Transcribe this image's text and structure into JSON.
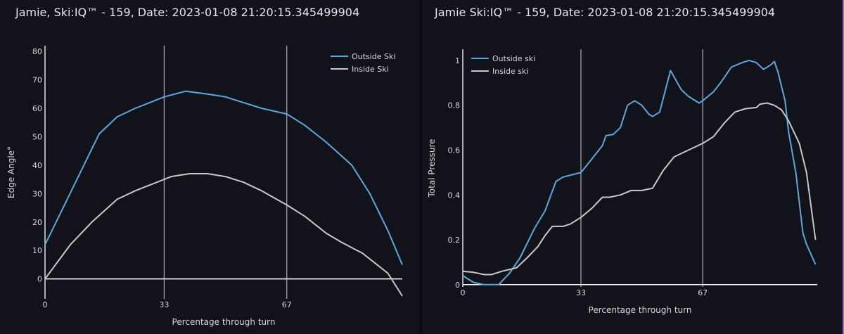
{
  "chart_data": [
    {
      "type": "line",
      "title": "Jamie, Ski:IQ™ - 159, Date: 2023-01-08 21:20:15.345499904",
      "xlabel": "Percentage through turn",
      "ylabel": "Edge Angle°",
      "xlim": [
        0,
        99
      ],
      "ylim": [
        -7,
        82
      ],
      "xticks": [
        0,
        33,
        67
      ],
      "yticks": [
        0,
        10,
        20,
        30,
        40,
        50,
        60,
        70,
        80
      ],
      "vlines": [
        33,
        67
      ],
      "grid": false,
      "legend": "top-right",
      "series": [
        {
          "name": "Outside Ski",
          "color": "#5aa8dc",
          "x": [
            0,
            5,
            10,
            15,
            20,
            25,
            30,
            33,
            39,
            45,
            50,
            55,
            60,
            67,
            72,
            78,
            85,
            90,
            95,
            99
          ],
          "y": [
            12,
            25,
            38,
            51,
            57,
            60,
            62.5,
            64,
            66,
            65,
            64,
            62,
            60,
            58,
            54,
            48,
            40,
            30,
            17,
            5
          ]
        },
        {
          "name": "Inside Ski",
          "color": "#c8c8c8",
          "x": [
            0,
            7,
            13,
            20,
            25,
            30,
            35,
            40,
            45,
            50,
            55,
            60,
            67,
            72,
            78,
            82,
            88,
            95,
            99
          ],
          "y": [
            0,
            12,
            20,
            28,
            31,
            33.5,
            36,
            37,
            37,
            36,
            34,
            31,
            26,
            22,
            16,
            13,
            9,
            2,
            -6
          ]
        }
      ]
    },
    {
      "type": "line",
      "title": "Jamie Ski:IQ™ - 159, Date: 2023-01-08 21:20:15.345499904",
      "xlabel": "Percentage through turn",
      "ylabel": "Total Pressure",
      "xlim": [
        0,
        99
      ],
      "ylim": [
        -0.01,
        1.05
      ],
      "xticks": [
        0,
        33,
        67
      ],
      "yticks": [
        0,
        0.2,
        0.4,
        0.6,
        0.8,
        1
      ],
      "vlines": [
        33,
        67
      ],
      "grid": false,
      "legend": "top-left",
      "series": [
        {
          "name": "Outside ski",
          "color": "#5aa8dc",
          "x": [
            0,
            3,
            6,
            10,
            13,
            16,
            20,
            23,
            26,
            28,
            33,
            36,
            39,
            40,
            42,
            44,
            46,
            48,
            50,
            52,
            53,
            55,
            58,
            61,
            63,
            66,
            67,
            70,
            72,
            75,
            78,
            80,
            82,
            84,
            86,
            87,
            88,
            90,
            91,
            93,
            95,
            96,
            98.5
          ],
          "y": [
            0.04,
            0.01,
            0,
            0,
            0.05,
            0.12,
            0.25,
            0.33,
            0.46,
            0.48,
            0.5,
            0.56,
            0.62,
            0.665,
            0.67,
            0.7,
            0.8,
            0.82,
            0.8,
            0.76,
            0.75,
            0.77,
            0.955,
            0.87,
            0.84,
            0.81,
            0.82,
            0.86,
            0.9,
            0.97,
            0.99,
            1.0,
            0.99,
            0.96,
            0.98,
            0.995,
            0.95,
            0.82,
            0.68,
            0.5,
            0.23,
            0.18,
            0.09
          ]
        },
        {
          "name": "Inside ski",
          "color": "#c8c8c8",
          "x": [
            0,
            3,
            6,
            8,
            11,
            15,
            18,
            21,
            23,
            25,
            28,
            30,
            33,
            36,
            39,
            41,
            44,
            47,
            50,
            53,
            56,
            59,
            63,
            67,
            70,
            73,
            76,
            79,
            82,
            83,
            85,
            87,
            89,
            91,
            94,
            96,
            98.5
          ],
          "y": [
            0.06,
            0.055,
            0.045,
            0.045,
            0.06,
            0.075,
            0.12,
            0.17,
            0.22,
            0.26,
            0.26,
            0.27,
            0.3,
            0.34,
            0.39,
            0.39,
            0.4,
            0.42,
            0.42,
            0.43,
            0.51,
            0.57,
            0.6,
            0.63,
            0.66,
            0.72,
            0.77,
            0.785,
            0.79,
            0.805,
            0.81,
            0.8,
            0.78,
            0.73,
            0.63,
            0.5,
            0.2
          ]
        }
      ]
    }
  ]
}
